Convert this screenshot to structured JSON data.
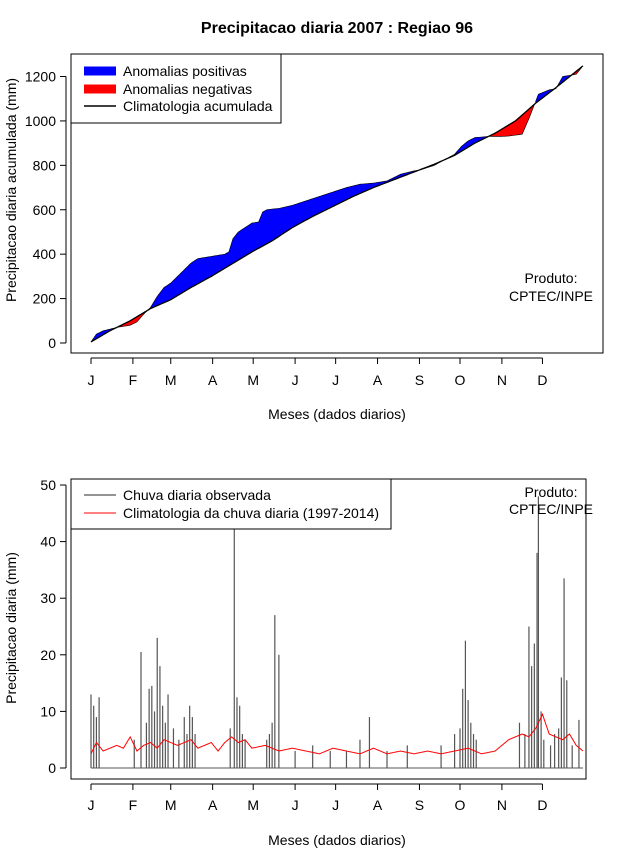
{
  "title": "Precipitacao diaria 2007 : Regiao 96",
  "credit": {
    "line1": "Produto:",
    "line2": "CPTEC/INPE"
  },
  "colors": {
    "positive": "#0000ff",
    "negative": "#ff0000",
    "climatology": "#000000",
    "observed": "#555555",
    "clim_daily": "#ff0000"
  },
  "chart_data": [
    {
      "type": "area",
      "title": "Precipitacao diaria 2007 : Regiao 96",
      "xlabel": "Meses (dados diarios)",
      "ylabel": "Precipitacao diaria acumulada (mm)",
      "ylim": [
        0,
        1300
      ],
      "yticks": [
        0,
        200,
        400,
        600,
        800,
        1000,
        1200
      ],
      "xlim": [
        1,
        365
      ],
      "month_labels": [
        "J",
        "F",
        "M",
        "A",
        "M",
        "J",
        "J",
        "A",
        "S",
        "O",
        "N",
        "D"
      ],
      "month_start_days": [
        1,
        32,
        60,
        91,
        121,
        152,
        182,
        213,
        244,
        274,
        305,
        335
      ],
      "legend": [
        "Anomalias positivas",
        "Anomalias negativas",
        "Climatologia acumulada"
      ],
      "series": [
        {
          "name": "Climatologia acumulada",
          "days": [
            1,
            15,
            30,
            45,
            60,
            75,
            90,
            105,
            120,
            135,
            150,
            165,
            180,
            195,
            210,
            225,
            240,
            255,
            270,
            285,
            300,
            315,
            330,
            345,
            365
          ],
          "values": [
            5,
            55,
            100,
            155,
            195,
            250,
            300,
            355,
            410,
            460,
            520,
            570,
            615,
            660,
            700,
            735,
            770,
            805,
            845,
            900,
            945,
            1000,
            1080,
            1150,
            1248
          ]
        },
        {
          "name": "Acumulada observada",
          "days": [
            1,
            5,
            10,
            20,
            30,
            35,
            40,
            45,
            50,
            55,
            60,
            65,
            70,
            75,
            80,
            85,
            90,
            95,
            100,
            103,
            106,
            110,
            115,
            120,
            125,
            128,
            131,
            135,
            140,
            150,
            160,
            170,
            180,
            190,
            200,
            210,
            220,
            225,
            230,
            240,
            245,
            255,
            270,
            275,
            280,
            285,
            295,
            300,
            305,
            310,
            320,
            325,
            332,
            336,
            340,
            345,
            350,
            360,
            365
          ],
          "values": [
            5,
            40,
            55,
            70,
            80,
            95,
            130,
            160,
            210,
            250,
            270,
            300,
            330,
            360,
            380,
            385,
            390,
            395,
            400,
            410,
            470,
            500,
            520,
            540,
            545,
            590,
            600,
            603,
            606,
            620,
            640,
            660,
            680,
            700,
            715,
            720,
            730,
            745,
            760,
            775,
            780,
            800,
            850,
            885,
            910,
            925,
            930,
            930,
            930,
            932,
            940,
            1010,
            1120,
            1130,
            1140,
            1145,
            1200,
            1210,
            1248
          ]
        }
      ]
    },
    {
      "type": "bar",
      "xlabel": "Meses (dados diarios)",
      "ylabel": "Precipitacao diaria (mm)",
      "ylim": [
        0,
        50
      ],
      "yticks": [
        0,
        10,
        20,
        30,
        40,
        50
      ],
      "xlim": [
        1,
        365
      ],
      "month_labels": [
        "J",
        "F",
        "M",
        "A",
        "M",
        "J",
        "J",
        "A",
        "S",
        "O",
        "N",
        "D"
      ],
      "month_start_days": [
        1,
        32,
        60,
        91,
        121,
        152,
        182,
        213,
        244,
        274,
        305,
        335
      ],
      "legend": [
        "Chuva diaria observada",
        "Climatologia da chuva diaria (1997-2014)"
      ],
      "observed_peaks": [
        {
          "day": 1,
          "value": 13
        },
        {
          "day": 3,
          "value": 11
        },
        {
          "day": 5,
          "value": 9
        },
        {
          "day": 7,
          "value": 12.5
        },
        {
          "day": 33,
          "value": 5
        },
        {
          "day": 38,
          "value": 20.5
        },
        {
          "day": 42,
          "value": 8
        },
        {
          "day": 44,
          "value": 14
        },
        {
          "day": 46,
          "value": 14.5
        },
        {
          "day": 48,
          "value": 10
        },
        {
          "day": 50,
          "value": 23
        },
        {
          "day": 52,
          "value": 18
        },
        {
          "day": 54,
          "value": 11
        },
        {
          "day": 56,
          "value": 8
        },
        {
          "day": 58,
          "value": 13
        },
        {
          "day": 62,
          "value": 7
        },
        {
          "day": 66,
          "value": 5
        },
        {
          "day": 70,
          "value": 9
        },
        {
          "day": 72,
          "value": 6
        },
        {
          "day": 74,
          "value": 11
        },
        {
          "day": 76,
          "value": 9
        },
        {
          "day": 78,
          "value": 6
        },
        {
          "day": 104,
          "value": 7
        },
        {
          "day": 107,
          "value": 43
        },
        {
          "day": 109,
          "value": 12.5
        },
        {
          "day": 111,
          "value": 11
        },
        {
          "day": 113,
          "value": 6
        },
        {
          "day": 115,
          "value": 5
        },
        {
          "day": 131,
          "value": 5
        },
        {
          "day": 133,
          "value": 6
        },
        {
          "day": 135,
          "value": 8
        },
        {
          "day": 137,
          "value": 27
        },
        {
          "day": 140,
          "value": 20
        },
        {
          "day": 152,
          "value": 3
        },
        {
          "day": 165,
          "value": 4
        },
        {
          "day": 178,
          "value": 3
        },
        {
          "day": 190,
          "value": 3
        },
        {
          "day": 200,
          "value": 5
        },
        {
          "day": 207,
          "value": 9
        },
        {
          "day": 220,
          "value": 3
        },
        {
          "day": 235,
          "value": 4
        },
        {
          "day": 260,
          "value": 4
        },
        {
          "day": 270,
          "value": 6
        },
        {
          "day": 274,
          "value": 7
        },
        {
          "day": 276,
          "value": 14
        },
        {
          "day": 278,
          "value": 22.5
        },
        {
          "day": 280,
          "value": 12
        },
        {
          "day": 282,
          "value": 8
        },
        {
          "day": 284,
          "value": 6
        },
        {
          "day": 286,
          "value": 5
        },
        {
          "day": 318,
          "value": 8
        },
        {
          "day": 322,
          "value": 6
        },
        {
          "day": 325,
          "value": 25
        },
        {
          "day": 327,
          "value": 18
        },
        {
          "day": 329,
          "value": 22
        },
        {
          "day": 331,
          "value": 38
        },
        {
          "day": 332,
          "value": 48
        },
        {
          "day": 334,
          "value": 10
        },
        {
          "day": 336,
          "value": 5
        },
        {
          "day": 341,
          "value": 4
        },
        {
          "day": 344,
          "value": 6
        },
        {
          "day": 347,
          "value": 7
        },
        {
          "day": 349,
          "value": 16
        },
        {
          "day": 351,
          "value": 33.5
        },
        {
          "day": 353,
          "value": 15.5
        },
        {
          "day": 357,
          "value": 4
        },
        {
          "day": 362,
          "value": 8.5
        }
      ],
      "climatology_days": [
        1,
        5,
        10,
        15,
        20,
        25,
        30,
        35,
        40,
        45,
        50,
        55,
        60,
        65,
        70,
        75,
        80,
        85,
        90,
        95,
        100,
        105,
        110,
        115,
        120,
        130,
        140,
        150,
        160,
        170,
        180,
        190,
        200,
        210,
        220,
        230,
        240,
        250,
        260,
        270,
        280,
        290,
        300,
        305,
        310,
        315,
        320,
        325,
        330,
        335,
        340,
        345,
        350,
        355,
        360,
        365
      ],
      "climatology_values": [
        2.5,
        4.5,
        3,
        3.5,
        4,
        3.5,
        5.5,
        3,
        4,
        4.5,
        3.5,
        5,
        4.5,
        4,
        4.5,
        5,
        3.5,
        4,
        4.5,
        3,
        4.5,
        5.5,
        4.5,
        5,
        3.5,
        4,
        3,
        3.5,
        3,
        2.5,
        3.5,
        3,
        2.5,
        3.5,
        2.5,
        3,
        2.5,
        3,
        2.5,
        3,
        3.5,
        2.5,
        3,
        4,
        5,
        5.5,
        6,
        5.5,
        7,
        9.5,
        6,
        5.5,
        5,
        6,
        4,
        3
      ]
    }
  ],
  "panels": [
    {
      "xlabel": "Meses (dados diarios)",
      "ylabel": "Precipitacao diaria acumulada (mm)",
      "legend": [
        "Anomalias positivas",
        "Anomalias negativas",
        "Climatologia acumulada"
      ]
    },
    {
      "xlabel": "Meses (dados diarios)",
      "ylabel": "Precipitacao diaria (mm)",
      "legend": [
        "Chuva diaria observada",
        "Climatologia da chuva diaria (1997-2014)"
      ]
    }
  ]
}
